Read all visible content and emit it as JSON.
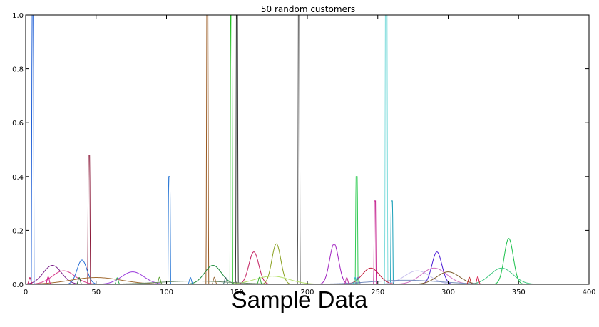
{
  "caption": "Sample Data",
  "chart_data": {
    "type": "line",
    "title": "50 random customers",
    "xlim": [
      0,
      400
    ],
    "ylim": [
      0,
      1.0
    ],
    "x_ticks": [
      0,
      50,
      100,
      150,
      200,
      250,
      300,
      350,
      400
    ],
    "y_ticks": [
      0.0,
      0.2,
      0.4,
      0.6,
      0.8,
      1.0
    ],
    "y_tick_labels": [
      "0.0",
      "0.2",
      "0.4",
      "0.6",
      "0.8",
      "1.0"
    ],
    "grid": false,
    "series": [
      {
        "shape": "flat",
        "center": 5,
        "width": 1.0,
        "peak": 1.0,
        "color": "#1f5fd6"
      },
      {
        "shape": "flat",
        "center": 45,
        "width": 1.0,
        "peak": 0.48,
        "color": "#8b1a3a"
      },
      {
        "shape": "flat",
        "center": 102,
        "width": 1.0,
        "peak": 0.4,
        "color": "#2a78d6"
      },
      {
        "shape": "flat",
        "center": 129,
        "width": 0.8,
        "peak": 1.0,
        "color": "#9a5a22"
      },
      {
        "shape": "flat",
        "center": 146,
        "width": 1.0,
        "peak": 1.0,
        "color": "#22c022"
      },
      {
        "shape": "flat",
        "center": 150,
        "width": 0.8,
        "peak": 1.0,
        "color": "#333333"
      },
      {
        "shape": "flat",
        "center": 194,
        "width": 0.8,
        "peak": 1.0,
        "color": "#555555"
      },
      {
        "shape": "flat",
        "center": 235,
        "width": 1.0,
        "peak": 0.4,
        "color": "#33cc55"
      },
      {
        "shape": "flat",
        "center": 248,
        "width": 0.8,
        "peak": 0.31,
        "color": "#c2188a"
      },
      {
        "shape": "flat",
        "center": 256,
        "width": 1.2,
        "peak": 1.0,
        "color": "#7fdcdc"
      },
      {
        "shape": "flat",
        "center": 260,
        "width": 1.0,
        "peak": 0.31,
        "color": "#1aa0b8"
      },
      {
        "shape": "gauss",
        "center": 19,
        "sigma": 6.5,
        "peak": 0.07,
        "color": "#7a1f8a"
      },
      {
        "shape": "gauss",
        "center": 27,
        "sigma": 8,
        "peak": 0.05,
        "color": "#d83a8a"
      },
      {
        "shape": "gauss",
        "center": 40,
        "sigma": 3.5,
        "peak": 0.09,
        "color": "#2a6fd6"
      },
      {
        "shape": "gauss",
        "center": 50,
        "sigma": 18,
        "peak": 0.025,
        "color": "#a06a30"
      },
      {
        "shape": "gauss",
        "center": 76,
        "sigma": 8,
        "peak": 0.046,
        "color": "#9a3adc"
      },
      {
        "shape": "gauss",
        "center": 133,
        "sigma": 6,
        "peak": 0.07,
        "color": "#1a8a3a"
      },
      {
        "shape": "gauss",
        "center": 162,
        "sigma": 3.5,
        "peak": 0.12,
        "color": "#c2185b"
      },
      {
        "shape": "gauss",
        "center": 178,
        "sigma": 3.2,
        "peak": 0.15,
        "color": "#8aa020"
      },
      {
        "shape": "gauss",
        "center": 175,
        "sigma": 12,
        "peak": 0.03,
        "color": "#b5e06a"
      },
      {
        "shape": "gauss",
        "center": 219,
        "sigma": 3.2,
        "peak": 0.15,
        "color": "#a020c0"
      },
      {
        "shape": "gauss",
        "center": 245,
        "sigma": 6,
        "peak": 0.06,
        "color": "#c21a3a"
      },
      {
        "shape": "gauss",
        "center": 278,
        "sigma": 9,
        "peak": 0.05,
        "color": "#c8c0ee"
      },
      {
        "shape": "gauss",
        "center": 292,
        "sigma": 3.5,
        "peak": 0.12,
        "color": "#4a1ad6"
      },
      {
        "shape": "gauss",
        "center": 290,
        "sigma": 9,
        "peak": 0.06,
        "color": "#d070c0"
      },
      {
        "shape": "gauss",
        "center": 300,
        "sigma": 8,
        "peak": 0.046,
        "color": "#7a5a2a"
      },
      {
        "shape": "gauss",
        "center": 343,
        "sigma": 3.2,
        "peak": 0.17,
        "color": "#1ac04a"
      },
      {
        "shape": "gauss",
        "center": 338,
        "sigma": 8,
        "peak": 0.06,
        "color": "#40c880"
      },
      {
        "shape": "gauss",
        "center": 270,
        "sigma": 25,
        "peak": 0.015,
        "color": "#7a90c0"
      },
      {
        "shape": "gauss",
        "center": 120,
        "sigma": 25,
        "peak": 0.012,
        "color": "#6a8a6a"
      },
      {
        "shape": "gauss",
        "center": 3,
        "sigma": 0.7,
        "peak": 0.025,
        "color": "#c21a5b"
      },
      {
        "shape": "gauss",
        "center": 16,
        "sigma": 0.7,
        "peak": 0.028,
        "color": "#d01a8a"
      },
      {
        "shape": "gauss",
        "center": 38,
        "sigma": 0.7,
        "peak": 0.025,
        "color": "#2a6a2a"
      },
      {
        "shape": "gauss",
        "center": 65,
        "sigma": 0.7,
        "peak": 0.024,
        "color": "#30b050"
      },
      {
        "shape": "gauss",
        "center": 95,
        "sigma": 0.7,
        "peak": 0.026,
        "color": "#5aa030"
      },
      {
        "shape": "gauss",
        "center": 117,
        "sigma": 0.7,
        "peak": 0.025,
        "color": "#2a7ad6"
      },
      {
        "shape": "gauss",
        "center": 134,
        "sigma": 0.7,
        "peak": 0.026,
        "color": "#9a6a3a"
      },
      {
        "shape": "gauss",
        "center": 142,
        "sigma": 0.7,
        "peak": 0.025,
        "color": "#3a6a6a"
      },
      {
        "shape": "gauss",
        "center": 166,
        "sigma": 0.7,
        "peak": 0.026,
        "color": "#3ab03a"
      },
      {
        "shape": "gauss",
        "center": 228,
        "sigma": 0.7,
        "peak": 0.025,
        "color": "#c03aa0"
      },
      {
        "shape": "gauss",
        "center": 234,
        "sigma": 0.7,
        "peak": 0.026,
        "color": "#3ac0c0"
      },
      {
        "shape": "gauss",
        "center": 236,
        "sigma": 0.7,
        "peak": 0.026,
        "color": "#6a6ab0"
      },
      {
        "shape": "gauss",
        "center": 315,
        "sigma": 0.7,
        "peak": 0.026,
        "color": "#c02a2a"
      },
      {
        "shape": "gauss",
        "center": 321,
        "sigma": 0.7,
        "peak": 0.028,
        "color": "#d81a4a"
      }
    ]
  }
}
